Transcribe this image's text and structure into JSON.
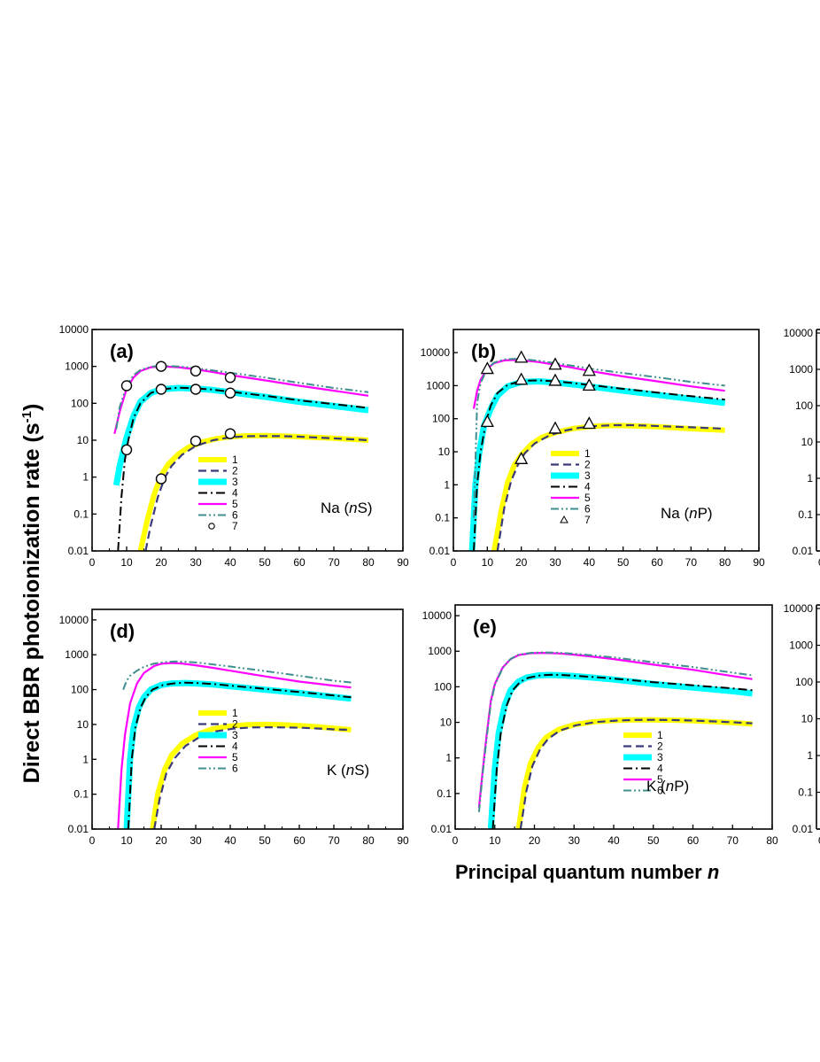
{
  "figure": {
    "ylabel": "Direct BBR photoionization rate (s",
    "ylabel_sup": "-1",
    "ylabel_close": ")",
    "xlabel": "Principal quantum number",
    "xlabel_var": "n"
  },
  "colors": {
    "yellow": "#ffff00",
    "navy": "#3a3a7a",
    "cyan": "#00ffff",
    "black": "#000000",
    "magenta": "#ff00ff",
    "teal": "#3f8f8f"
  },
  "chart_data": [
    {
      "id": "a",
      "type": "line",
      "panel_label": "(a)",
      "species": "Na",
      "state_pre": "(",
      "state_var": "n",
      "state_post": "S)",
      "xlim": [
        0,
        90
      ],
      "ylim": [
        0.01,
        10000
      ],
      "xticks": [
        "0",
        "10",
        "20",
        "30",
        "40",
        "50",
        "60",
        "70",
        "80",
        "90"
      ],
      "yticks": [
        "0.01",
        "0.1",
        "1",
        "10",
        "100",
        "1000",
        "10000"
      ],
      "legend": [
        "1",
        "2",
        "3",
        "4",
        "5",
        "6",
        "7"
      ],
      "series": [
        {
          "name": "1",
          "x": [
            14,
            16,
            18,
            20,
            22,
            25,
            28,
            32,
            36,
            40,
            45,
            50,
            55,
            60,
            70,
            80
          ],
          "y": [
            0.01,
            0.07,
            0.35,
            1.1,
            2.2,
            4.2,
            6.5,
            9,
            11,
            12.5,
            13.2,
            13.3,
            13,
            12.5,
            11.3,
            10
          ]
        },
        {
          "name": "2",
          "x": [
            15.5,
            17,
            19,
            21,
            23,
            26,
            30,
            35,
            40,
            45,
            50,
            55,
            60,
            70,
            80
          ],
          "y": [
            0.01,
            0.05,
            0.28,
            0.95,
            2,
            4,
            7,
            10,
            12,
            12.8,
            13,
            12.9,
            12.5,
            11.2,
            10
          ]
        },
        {
          "name": "3",
          "x": [
            7,
            8,
            9,
            10,
            12,
            14,
            17,
            20,
            25,
            30,
            35,
            40,
            50,
            60,
            70,
            80
          ],
          "y": [
            0.6,
            2,
            5,
            12,
            45,
            110,
            190,
            240,
            260,
            250,
            230,
            200,
            150,
            110,
            85,
            65
          ]
        },
        {
          "name": "4",
          "x": [
            7.5,
            8.5,
            9.5,
            10.5,
            12,
            14,
            17,
            20,
            25,
            30,
            35,
            40,
            50,
            60,
            70,
            80
          ],
          "y": [
            0.01,
            0.3,
            3,
            10,
            40,
            100,
            190,
            240,
            265,
            255,
            235,
            205,
            160,
            120,
            95,
            75
          ]
        },
        {
          "name": "5",
          "x": [
            6.5,
            8,
            10,
            12,
            14,
            17,
            20,
            25,
            30,
            35,
            40,
            50,
            60,
            70,
            80
          ],
          "y": [
            15,
            60,
            250,
            500,
            750,
            950,
            1000,
            950,
            830,
            700,
            580,
            420,
            300,
            220,
            160
          ]
        },
        {
          "name": "6",
          "x": [
            7,
            8,
            10,
            12,
            14,
            17,
            20,
            25,
            30,
            35,
            40,
            50,
            60,
            70,
            80
          ],
          "y": [
            20,
            80,
            300,
            580,
            800,
            980,
            1050,
            1000,
            900,
            780,
            670,
            500,
            360,
            260,
            200
          ]
        },
        {
          "name": "7",
          "x": [
            10,
            20,
            30,
            40,
            10,
            20,
            30,
            40,
            20,
            30,
            40
          ],
          "y": [
            300,
            1000,
            750,
            500,
            5.5,
            240,
            240,
            190,
            0.9,
            9.5,
            15
          ]
        }
      ]
    },
    {
      "id": "b",
      "type": "line",
      "panel_label": "(b)",
      "species": "Na",
      "state_pre": "(",
      "state_var": "n",
      "state_post": "P)",
      "xlim": [
        0,
        90
      ],
      "ylim": [
        0.01,
        50000
      ],
      "xticks": [
        "0",
        "10",
        "20",
        "30",
        "40",
        "50",
        "60",
        "70",
        "80",
        "90"
      ],
      "yticks": [
        "0.01",
        "0.1",
        "1",
        "10",
        "100",
        "1000",
        "10000"
      ],
      "legend": [
        "1",
        "2",
        "3",
        "4",
        "5",
        "6",
        "7"
      ],
      "series": [
        {
          "name": "1",
          "x": [
            12,
            14,
            16,
            18,
            20,
            23,
            26,
            30,
            35,
            40,
            45,
            50,
            55,
            60,
            70,
            80
          ],
          "y": [
            0.01,
            0.15,
            1.2,
            4,
            8,
            17,
            27,
            38,
            50,
            58,
            62,
            62,
            60,
            57,
            50,
            45
          ]
        },
        {
          "name": "2",
          "x": [
            13,
            15,
            17,
            19,
            21,
            24,
            28,
            32,
            37,
            42,
            47,
            52,
            57,
            62,
            70,
            80
          ],
          "y": [
            0.01,
            0.2,
            1.3,
            4,
            9,
            18,
            30,
            42,
            53,
            60,
            64,
            64,
            62,
            59,
            55,
            50
          ]
        },
        {
          "name": "3",
          "x": [
            5.5,
            6.5,
            7.5,
            9,
            11,
            13,
            16,
            20,
            25,
            30,
            35,
            40,
            50,
            60,
            70,
            80
          ],
          "y": [
            0.01,
            1,
            8,
            60,
            200,
            500,
            950,
            1300,
            1350,
            1250,
            1100,
            950,
            700,
            530,
            400,
            300
          ]
        },
        {
          "name": "4",
          "x": [
            6,
            7,
            8,
            9.5,
            11,
            13,
            16,
            20,
            25,
            30,
            35,
            40,
            50,
            60,
            70,
            80
          ],
          "y": [
            0.01,
            1,
            10,
            70,
            250,
            600,
            1050,
            1400,
            1450,
            1350,
            1200,
            1050,
            800,
            620,
            480,
            380
          ]
        },
        {
          "name": "5",
          "x": [
            6,
            7,
            8,
            10,
            12,
            15,
            18,
            20,
            25,
            30,
            35,
            40,
            50,
            60,
            70,
            80
          ],
          "y": [
            200,
            700,
            1500,
            3300,
            4800,
            5800,
            6000,
            5900,
            5200,
            4300,
            3500,
            2800,
            1900,
            1350,
            950,
            700
          ]
        },
        {
          "name": "6",
          "x": [
            6,
            7,
            8,
            10,
            12,
            15,
            18,
            20,
            25,
            30,
            35,
            40,
            50,
            60,
            70,
            80
          ],
          "y": [
            0.1,
            300,
            1200,
            3300,
            5000,
            6200,
            6500,
            6400,
            5700,
            4800,
            4000,
            3300,
            2400,
            1800,
            1300,
            1000
          ]
        },
        {
          "name": "7",
          "x": [
            10,
            20,
            30,
            40,
            10,
            20,
            30,
            40,
            20,
            30,
            40
          ],
          "y": [
            3200,
            7000,
            4300,
            2800,
            80,
            1500,
            1400,
            1000,
            6,
            50,
            70
          ]
        }
      ]
    },
    {
      "id": "d",
      "type": "line",
      "panel_label": "(d)",
      "species": "K",
      "state_pre": "(",
      "state_var": "n",
      "state_post": "S)",
      "xlim": [
        0,
        90
      ],
      "ylim": [
        0.01,
        20000
      ],
      "xticks": [
        "0",
        "10",
        "20",
        "30",
        "40",
        "50",
        "60",
        "70",
        "80",
        "90"
      ],
      "yticks": [
        "0.01",
        "0.1",
        "1",
        "10",
        "100",
        "1000",
        "10000"
      ],
      "legend": [
        "1",
        "2",
        "3",
        "4",
        "5",
        "6"
      ],
      "series": [
        {
          "name": "1",
          "x": [
            17.5,
            19,
            21,
            23,
            26,
            30,
            35,
            40,
            45,
            50,
            55,
            60,
            65,
            70,
            75
          ],
          "y": [
            0.01,
            0.1,
            0.5,
            1.3,
            2.8,
            5,
            7.5,
            9,
            9.8,
            10,
            9.8,
            9.3,
            8.6,
            7.8,
            7
          ]
        },
        {
          "name": "2",
          "x": [
            18,
            19.5,
            21.5,
            24,
            27,
            31,
            36,
            41,
            46,
            51,
            56,
            61,
            66,
            70,
            75
          ],
          "y": [
            0.01,
            0.07,
            0.4,
            1.1,
            2.4,
            4.3,
            6.4,
            7.6,
            8.2,
            8.3,
            8.2,
            8,
            7.6,
            7.2,
            7
          ]
        },
        {
          "name": "3",
          "x": [
            10,
            11,
            12,
            13.5,
            15,
            17,
            20,
            23,
            27,
            30,
            35,
            40,
            50,
            60,
            70,
            75
          ],
          "y": [
            0.01,
            1,
            8,
            30,
            60,
            100,
            135,
            150,
            155,
            150,
            140,
            125,
            100,
            80,
            62,
            55
          ]
        },
        {
          "name": "4",
          "x": [
            10.5,
            11.5,
            12.5,
            14,
            15.5,
            17.5,
            20.5,
            23.5,
            27,
            30,
            35,
            40,
            50,
            60,
            70,
            75
          ],
          "y": [
            0.01,
            1,
            8,
            30,
            60,
            100,
            135,
            150,
            158,
            155,
            145,
            130,
            105,
            85,
            68,
            60
          ]
        },
        {
          "name": "5",
          "x": [
            7.5,
            8.5,
            9.5,
            11,
            13,
            15,
            18,
            20,
            23,
            26,
            30,
            35,
            40,
            50,
            60,
            70,
            75
          ],
          "y": [
            0.01,
            0.5,
            5,
            40,
            150,
            300,
            480,
            550,
            580,
            560,
            500,
            420,
            350,
            240,
            170,
            130,
            115
          ]
        },
        {
          "name": "6",
          "x": [
            9,
            10,
            11,
            13,
            15,
            18,
            21,
            24,
            27,
            30,
            35,
            40,
            50,
            60,
            70,
            75
          ],
          "y": [
            100,
            180,
            250,
            350,
            450,
            560,
            620,
            640,
            630,
            600,
            530,
            460,
            340,
            250,
            180,
            160
          ]
        }
      ]
    },
    {
      "id": "e",
      "type": "line",
      "panel_label": "(e)",
      "species": "K",
      "state_pre": "(",
      "state_var": "n",
      "state_post": "P)",
      "xlim": [
        0,
        80
      ],
      "ylim": [
        0.01,
        20000
      ],
      "xticks": [
        "0",
        "10",
        "20",
        "30",
        "40",
        "50",
        "60",
        "70",
        "80"
      ],
      "yticks": [
        "0.01",
        "0.1",
        "1",
        "10",
        "100",
        "1000",
        "10000"
      ],
      "legend": [
        "1",
        "2",
        "3",
        "4",
        "5",
        "6"
      ],
      "series": [
        {
          "name": "1",
          "x": [
            16,
            17.5,
            19,
            21,
            23,
            26,
            30,
            35,
            40,
            45,
            50,
            55,
            60,
            65,
            70,
            75
          ],
          "y": [
            0.01,
            0.15,
            0.7,
            2,
            3.8,
            6.2,
            8.6,
            10.4,
            11.3,
            11.7,
            11.7,
            11.5,
            11.1,
            10.5,
            9.8,
            9
          ]
        },
        {
          "name": "2",
          "x": [
            16.5,
            18,
            19.5,
            21.5,
            23.5,
            26.5,
            30.5,
            35.5,
            40.5,
            45.5,
            50.5,
            55.5,
            60.5,
            65.5,
            70,
            75
          ],
          "y": [
            0.01,
            0.12,
            0.6,
            1.8,
            3.5,
            5.9,
            8.3,
            10.2,
            11.2,
            11.7,
            11.8,
            11.6,
            11.2,
            10.6,
            10,
            9.4
          ]
        },
        {
          "name": "3",
          "x": [
            9,
            10,
            11,
            12.5,
            14,
            16,
            18,
            21,
            24,
            27,
            30,
            35,
            40,
            50,
            60,
            70,
            75
          ],
          "y": [
            0.01,
            0.5,
            5,
            30,
            80,
            140,
            180,
            210,
            215,
            210,
            200,
            180,
            160,
            120,
            95,
            75,
            65
          ]
        },
        {
          "name": "4",
          "x": [
            9.5,
            10.5,
            11.5,
            13,
            14.5,
            16.5,
            18.5,
            21.5,
            24.5,
            27.5,
            30,
            35,
            40,
            50,
            60,
            70,
            75
          ],
          "y": [
            0.01,
            0.5,
            5,
            30,
            80,
            140,
            180,
            210,
            218,
            213,
            205,
            188,
            170,
            135,
            110,
            90,
            80
          ]
        },
        {
          "name": "5",
          "x": [
            6,
            7,
            8,
            9,
            10,
            12,
            14,
            16,
            19,
            22,
            26,
            30,
            35,
            40,
            50,
            60,
            70,
            75
          ],
          "y": [
            0.04,
            0.5,
            5,
            40,
            120,
            350,
            600,
            780,
            880,
            900,
            870,
            800,
            700,
            600,
            420,
            300,
            200,
            165
          ]
        },
        {
          "name": "6",
          "x": [
            6,
            7,
            8,
            9,
            10,
            12,
            14,
            16,
            19,
            22,
            26,
            30,
            35,
            40,
            50,
            60,
            70,
            75
          ],
          "y": [
            0.03,
            0.4,
            4,
            35,
            110,
            340,
            610,
            800,
            900,
            930,
            910,
            850,
            760,
            670,
            490,
            360,
            250,
            210
          ]
        }
      ]
    },
    {
      "id": "c",
      "type": "line",
      "panel_label": "",
      "partial": true,
      "yticks": [
        "0.01",
        "0.1",
        "1",
        "10",
        "100",
        "1000",
        "10000"
      ],
      "xticks": [
        "0"
      ]
    },
    {
      "id": "f",
      "type": "line",
      "panel_label": "",
      "partial": true,
      "yticks": [
        "0.01",
        "0.1",
        "1",
        "10",
        "100",
        "1000",
        "10000"
      ],
      "xticks": [
        "0"
      ]
    }
  ]
}
